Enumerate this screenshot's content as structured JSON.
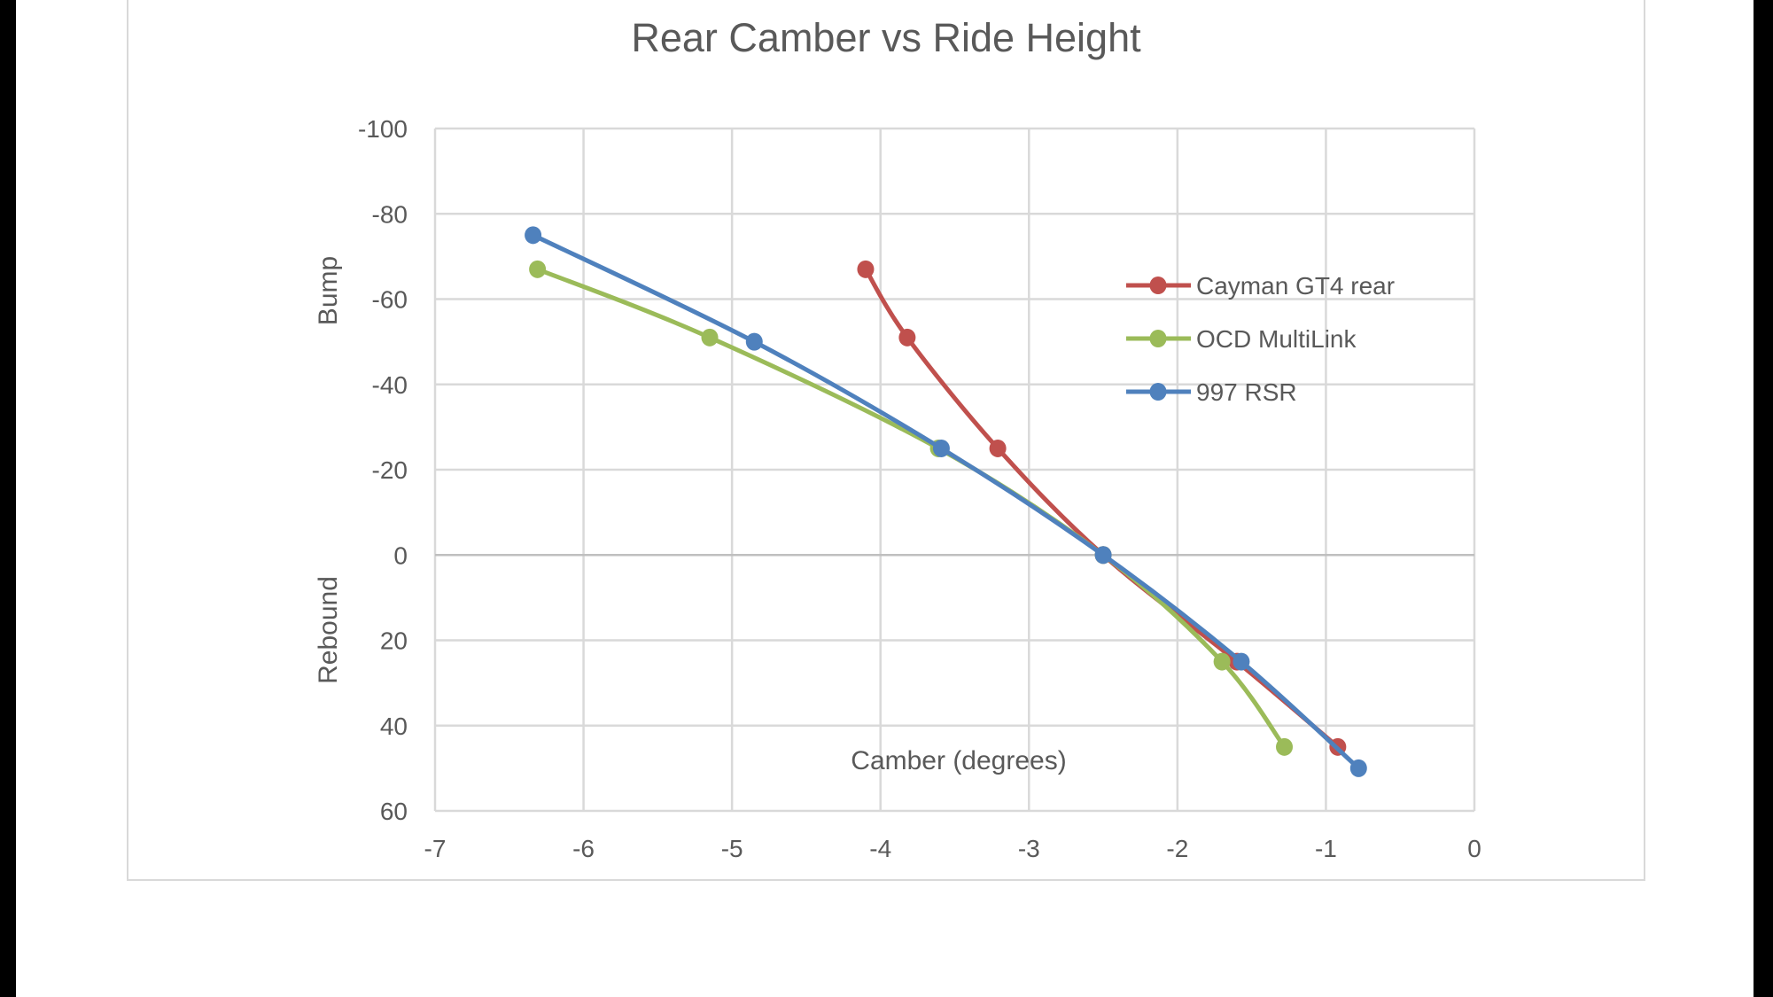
{
  "chart_data": {
    "type": "line",
    "title": "Rear Camber vs Ride Height",
    "xlabel": "Camber (degrees)",
    "ylabel_top": "Bump",
    "ylabel_bottom": "Rebound",
    "xlim": [
      -7,
      0
    ],
    "ylim": [
      -100,
      60
    ],
    "y_inverted": true,
    "xticks": [
      -7,
      -6,
      -5,
      -4,
      -3,
      -2,
      -1,
      0
    ],
    "yticks": [
      -100,
      -80,
      -60,
      -40,
      -20,
      0,
      20,
      40,
      60
    ],
    "grid": true,
    "smooth": true,
    "legend_position": "right",
    "series": [
      {
        "name": "Cayman GT4 rear",
        "color": "#C0504D",
        "points": [
          [
            -4.1,
            -67
          ],
          [
            -3.82,
            -51
          ],
          [
            -3.21,
            -25
          ],
          [
            -2.5,
            0
          ],
          [
            -1.6,
            25
          ],
          [
            -0.92,
            45
          ]
        ]
      },
      {
        "name": "OCD MultiLink",
        "color": "#9BBB59",
        "points": [
          [
            -6.31,
            -67
          ],
          [
            -5.15,
            -51
          ],
          [
            -3.61,
            -25
          ],
          [
            -2.5,
            0
          ],
          [
            -1.7,
            25
          ],
          [
            -1.28,
            45
          ]
        ]
      },
      {
        "name": "997 RSR",
        "color": "#4F81BD",
        "points": [
          [
            -6.34,
            -75
          ],
          [
            -4.85,
            -50
          ],
          [
            -3.59,
            -25
          ],
          [
            -2.5,
            0
          ],
          [
            -1.57,
            25
          ],
          [
            -0.78,
            50
          ]
        ]
      }
    ]
  }
}
